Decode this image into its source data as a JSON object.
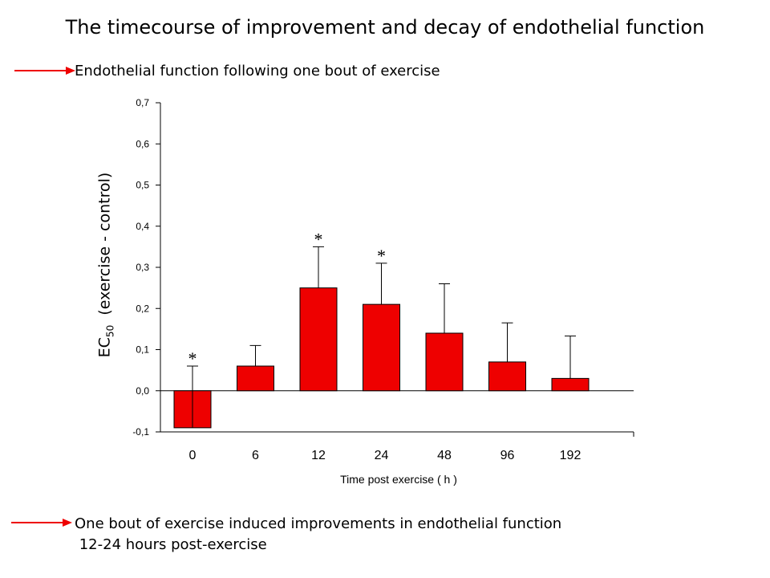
{
  "title": "The timecourse of improvement and decay of endothelial function",
  "subtitle": "Endothelial function following one bout of exercise",
  "conclusion": {
    "line1": "One bout of exercise induced improvements in endothelial function",
    "line2": " 12-24 hours post-exercise"
  },
  "colors": {
    "bar": "#ee0000",
    "arrow": "#ee0000"
  },
  "chart_data": {
    "type": "bar",
    "categories": [
      "0",
      "6",
      "12",
      "24",
      "48",
      "96",
      "192"
    ],
    "values": [
      -0.09,
      0.06,
      0.25,
      0.21,
      0.14,
      0.07,
      0.03
    ],
    "error_upper": [
      0.06,
      0.11,
      0.35,
      0.31,
      0.26,
      0.165,
      0.133
    ],
    "significant": [
      true,
      false,
      true,
      true,
      false,
      false,
      false
    ],
    "significance_marker": "*",
    "ylim": [
      -0.1,
      0.7
    ],
    "yticks": [
      "-0,1",
      "0,0",
      "0,1",
      "0,2",
      "0,3",
      "0,4",
      "0,5",
      "0,6",
      "0,7"
    ],
    "ytick_values": [
      -0.1,
      0.0,
      0.1,
      0.2,
      0.3,
      0.4,
      0.5,
      0.6,
      0.7
    ],
    "xlabel": "Time post exercise ( h )",
    "ylabel_main": "EC",
    "ylabel_sub": "50",
    "ylabel_rest": "  (exercise - control)",
    "grid": false,
    "legend": "none"
  }
}
